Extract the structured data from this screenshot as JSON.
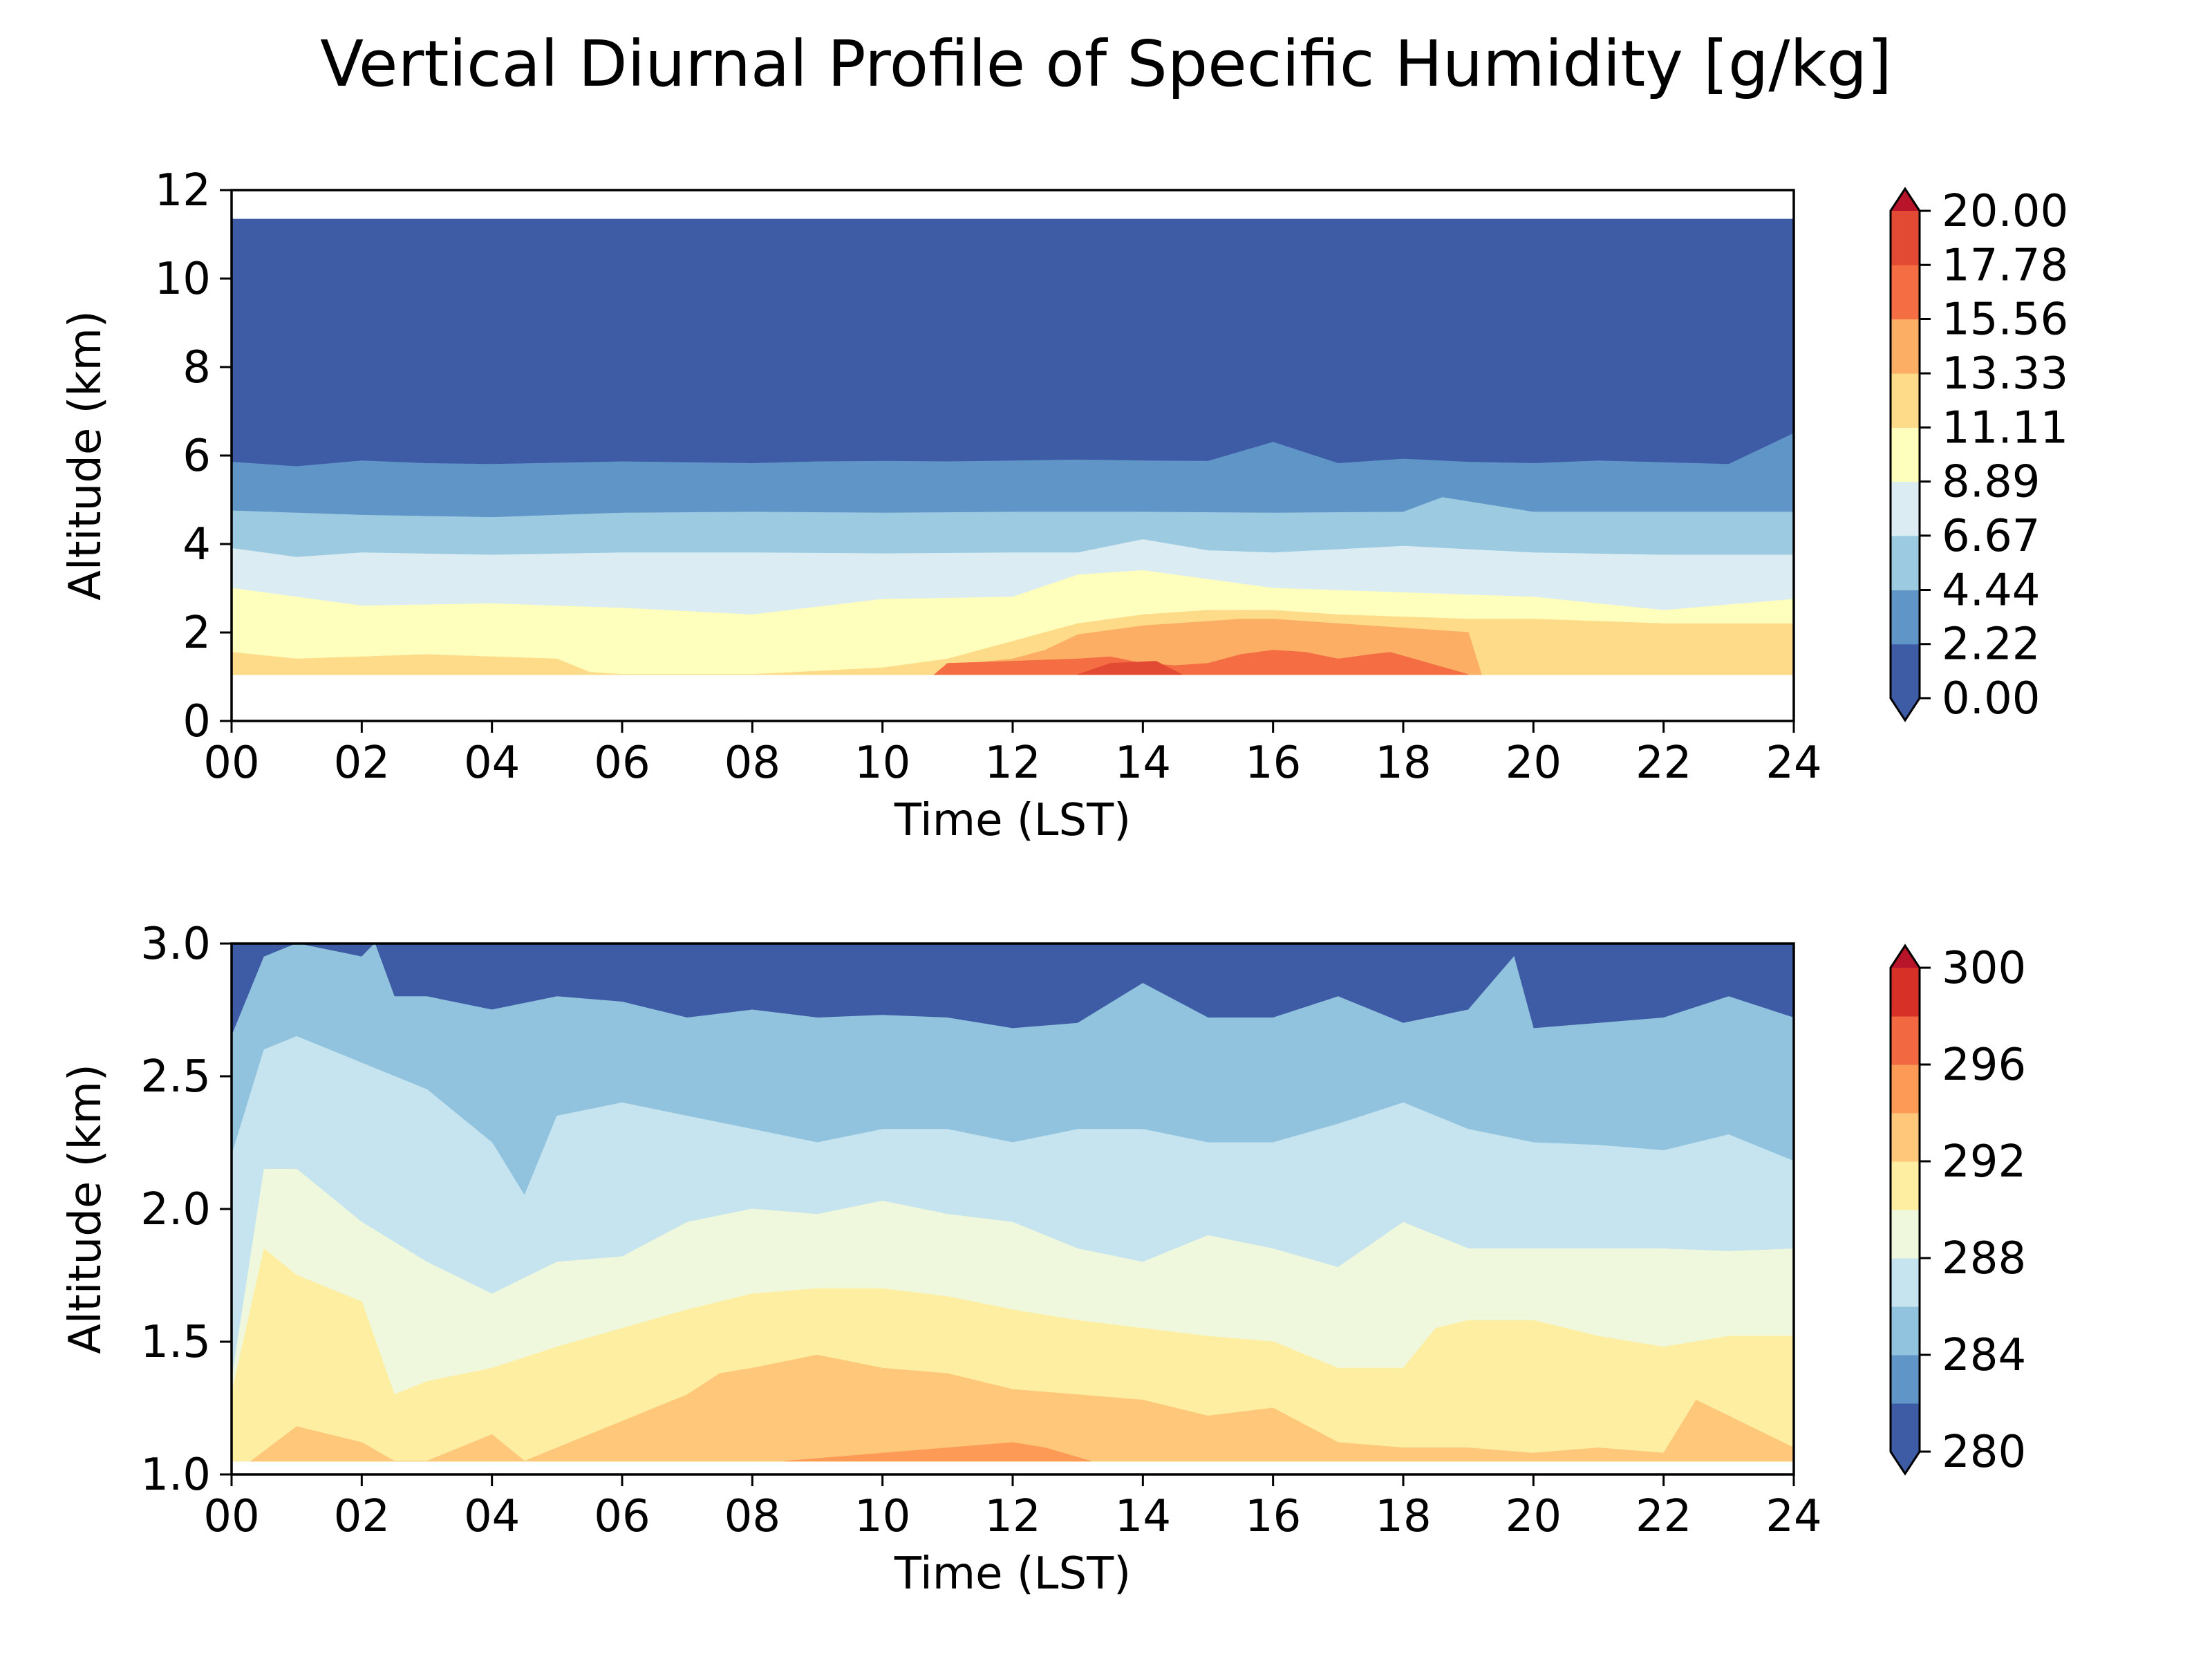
{
  "title": "Vertical Diurnal Profile of Specific Humidity [g/kg]",
  "chart_data": [
    {
      "type": "heatmap",
      "subtype": "filled-contour",
      "title": "",
      "xlabel": "Time (LST)",
      "ylabel": "Altitude (km)",
      "xlim": [
        0,
        24
      ],
      "ylim": [
        0,
        12
      ],
      "x_ticks": [
        "00",
        "02",
        "04",
        "06",
        "08",
        "10",
        "12",
        "14",
        "16",
        "18",
        "20",
        "22",
        "24"
      ],
      "y_ticks": [
        "0",
        "2",
        "4",
        "6",
        "8",
        "10",
        "12"
      ],
      "data_y_range": [
        1.05,
        11.35
      ],
      "colorbar": {
        "levels": [
          0.0,
          2.22,
          4.44,
          6.67,
          8.89,
          11.11,
          13.33,
          15.56,
          17.78,
          20.0
        ],
        "tick_labels": [
          "0.00",
          "2.22",
          "4.44",
          "6.67",
          "8.89",
          "11.11",
          "13.33",
          "15.56",
          "17.78",
          "20.00"
        ],
        "colors": [
          "#3e5ba5",
          "#6095c8",
          "#9ccbe1",
          "#dcecf3",
          "#fefebd",
          "#fedb88",
          "#fcaf64",
          "#f46d43",
          "#e34a33",
          "#b8142a"
        ],
        "extend": "both"
      },
      "contours": [
        {
          "upper_level": 2.22,
          "color": "#6095c8",
          "x": [
            0,
            1,
            2,
            3,
            4,
            5,
            6,
            7,
            8,
            9,
            10,
            11,
            12,
            13,
            14,
            15,
            16,
            17,
            18,
            19,
            20,
            21,
            22,
            23,
            24
          ],
          "y": [
            5.85,
            5.75,
            5.88,
            5.82,
            5.8,
            5.83,
            5.86,
            5.84,
            5.82,
            5.86,
            5.87,
            5.86,
            5.88,
            5.9,
            5.88,
            5.87,
            6.3,
            5.82,
            5.92,
            5.85,
            5.82,
            5.88,
            5.84,
            5.8,
            6.5
          ]
        },
        {
          "upper_level": 4.44,
          "color": "#9ccbe1",
          "x": [
            0,
            2,
            4,
            6,
            8,
            10,
            12,
            14,
            16,
            18,
            18.6,
            20,
            22,
            24
          ],
          "y": [
            4.75,
            4.65,
            4.6,
            4.7,
            4.72,
            4.7,
            4.72,
            4.72,
            4.7,
            4.72,
            5.05,
            4.72,
            4.72,
            4.72
          ]
        },
        {
          "upper_level": 6.67,
          "color": "#dcecf3",
          "x": [
            0,
            1,
            2,
            4,
            6,
            8,
            10,
            12,
            13,
            14,
            15,
            16,
            18,
            20,
            22,
            24
          ],
          "y": [
            3.9,
            3.7,
            3.8,
            3.75,
            3.8,
            3.8,
            3.78,
            3.8,
            3.8,
            4.1,
            3.85,
            3.8,
            3.95,
            3.8,
            3.75,
            3.75
          ]
        },
        {
          "upper_level": 8.89,
          "color": "#fefebd",
          "x": [
            0,
            2,
            4,
            6,
            8,
            10,
            12,
            13,
            14,
            15,
            16,
            18,
            20,
            22,
            24
          ],
          "y": [
            3.0,
            2.6,
            2.65,
            2.55,
            2.4,
            2.75,
            2.8,
            3.3,
            3.4,
            3.2,
            3.0,
            2.9,
            2.8,
            2.5,
            2.75
          ]
        },
        {
          "upper_level": 11.11,
          "color": "#fedb88",
          "x": [
            0,
            1,
            2,
            3,
            4,
            5,
            5.5,
            6,
            7,
            8,
            10,
            11,
            12,
            13,
            14,
            15,
            16,
            17,
            18,
            19,
            20,
            22,
            24
          ],
          "y": [
            1.55,
            1.4,
            1.45,
            1.5,
            1.45,
            1.4,
            1.1,
            1.05,
            1.05,
            1.05,
            1.2,
            1.4,
            1.8,
            2.2,
            2.4,
            2.5,
            2.5,
            2.4,
            2.35,
            2.3,
            2.3,
            2.2,
            2.2
          ]
        },
        {
          "upper_level": 13.33,
          "color": "#fcaf64",
          "x": [
            10.8,
            11,
            12,
            12.5,
            13,
            14,
            15,
            15.5,
            16,
            16.5,
            17,
            18,
            19,
            19.2
          ],
          "y": [
            1.05,
            1.25,
            1.4,
            1.6,
            1.95,
            2.15,
            2.25,
            2.3,
            2.3,
            2.25,
            2.2,
            2.1,
            2.0,
            1.05
          ]
        },
        {
          "upper_level": 15.56,
          "color": "#f46d43",
          "x": [
            10.8,
            11,
            12,
            13,
            13.5,
            14,
            14.5,
            15,
            15.5,
            16,
            16.5,
            17,
            17.5,
            17.8,
            19
          ],
          "y": [
            1.05,
            1.3,
            1.35,
            1.4,
            1.45,
            1.3,
            1.25,
            1.3,
            1.5,
            1.6,
            1.55,
            1.4,
            1.5,
            1.55,
            1.05
          ]
        },
        {
          "upper_level": 17.78,
          "color": "#e34a33",
          "x": [
            13.0,
            13.5,
            14.2,
            14.6
          ],
          "y": [
            1.05,
            1.3,
            1.35,
            1.05
          ]
        }
      ]
    },
    {
      "type": "heatmap",
      "subtype": "filled-contour",
      "title": "",
      "xlabel": "Time (LST)",
      "ylabel": "Altitude (km)",
      "xlim": [
        0,
        24
      ],
      "ylim": [
        1.0,
        3.0
      ],
      "x_ticks": [
        "00",
        "02",
        "04",
        "06",
        "08",
        "10",
        "12",
        "14",
        "16",
        "18",
        "20",
        "22",
        "24"
      ],
      "y_ticks": [
        "1.0",
        "1.5",
        "2.0",
        "2.5",
        "3.0"
      ],
      "data_y_range": [
        1.05,
        3.0
      ],
      "colorbar": {
        "levels": [
          280,
          282,
          284,
          286,
          288,
          290,
          292,
          294,
          296,
          298,
          300
        ],
        "tick_labels": [
          "280",
          "284",
          "288",
          "292",
          "296",
          "300"
        ],
        "colors": [
          "#3e5ba5",
          "#6095c8",
          "#91c3de",
          "#c5e4ef",
          "#eff8dc",
          "#feeea1",
          "#fec77a",
          "#fd9b56",
          "#f26841",
          "#d73027",
          "#b8142a"
        ],
        "extend": "both"
      },
      "contours": [
        {
          "upper_level": 286,
          "color": "#91c3de",
          "x": [
            0,
            0.5,
            1,
            2,
            2.2,
            2.5,
            3,
            4,
            5,
            6,
            7,
            8,
            9,
            10,
            11,
            12,
            13,
            14,
            15,
            16,
            17,
            18,
            19,
            19.7,
            20,
            21,
            22,
            23,
            24
          ],
          "y": [
            2.65,
            2.95,
            3.0,
            2.95,
            3.0,
            2.8,
            2.8,
            2.75,
            2.8,
            2.78,
            2.72,
            2.75,
            2.72,
            2.73,
            2.72,
            2.68,
            2.7,
            2.85,
            2.72,
            2.72,
            2.8,
            2.7,
            2.75,
            2.95,
            2.68,
            2.7,
            2.72,
            2.8,
            2.72
          ]
        },
        {
          "upper_level": 288,
          "color": "#c5e4ef",
          "x": [
            0,
            0.5,
            1,
            2,
            3,
            4,
            4.5,
            5,
            6,
            7,
            8,
            9,
            10,
            11,
            12,
            13,
            14,
            15,
            16,
            17,
            18,
            19,
            20,
            21,
            22,
            23,
            24
          ],
          "y": [
            2.2,
            2.6,
            2.65,
            2.55,
            2.45,
            2.25,
            2.05,
            2.35,
            2.4,
            2.35,
            2.3,
            2.25,
            2.3,
            2.3,
            2.25,
            2.3,
            2.3,
            2.25,
            2.25,
            2.32,
            2.4,
            2.3,
            2.25,
            2.24,
            2.22,
            2.28,
            2.18
          ]
        },
        {
          "upper_level": 290,
          "color": "#eff8dc",
          "x": [
            0,
            0.5,
            1,
            2,
            3,
            4,
            5,
            6,
            7,
            8,
            9,
            10,
            11,
            12,
            13,
            14,
            15,
            16,
            17,
            18,
            19,
            20,
            21,
            22,
            23,
            24
          ],
          "y": [
            1.35,
            2.15,
            2.15,
            1.95,
            1.8,
            1.68,
            1.8,
            1.82,
            1.95,
            2.0,
            1.98,
            2.03,
            1.98,
            1.95,
            1.85,
            1.8,
            1.9,
            1.85,
            1.78,
            1.95,
            1.85,
            1.85,
            1.85,
            1.85,
            1.84,
            1.85
          ]
        },
        {
          "upper_level": 292,
          "color": "#feeea1",
          "x": [
            0,
            0.5,
            1,
            1.5,
            2,
            2.5,
            3,
            4,
            5,
            6,
            7,
            8,
            9,
            10,
            11,
            12,
            13,
            14,
            15,
            16,
            17,
            18,
            18.5,
            19,
            20,
            21,
            22,
            23,
            24
          ],
          "y": [
            1.3,
            1.85,
            1.75,
            1.7,
            1.65,
            1.3,
            1.35,
            1.4,
            1.48,
            1.55,
            1.62,
            1.68,
            1.7,
            1.7,
            1.67,
            1.62,
            1.58,
            1.55,
            1.52,
            1.5,
            1.4,
            1.4,
            1.55,
            1.58,
            1.58,
            1.52,
            1.48,
            1.52,
            1.52
          ]
        },
        {
          "upper_level": 294,
          "color": "#fec77a",
          "x": [
            0.3,
            1,
            2,
            2.5,
            3,
            4,
            4.5,
            5,
            6,
            7,
            7.5,
            8,
            9,
            10,
            11,
            12,
            13,
            14,
            15,
            16,
            17,
            18,
            19,
            20,
            21,
            22,
            22.5,
            23,
            24
          ],
          "y": [
            1.05,
            1.18,
            1.12,
            1.05,
            1.05,
            1.15,
            1.05,
            1.1,
            1.2,
            1.3,
            1.38,
            1.4,
            1.45,
            1.4,
            1.38,
            1.32,
            1.3,
            1.28,
            1.22,
            1.25,
            1.12,
            1.1,
            1.1,
            1.08,
            1.1,
            1.08,
            1.28,
            1.22,
            1.1
          ]
        },
        {
          "upper_level": 296,
          "color": "#fd9b56",
          "x": [
            8.5,
            9,
            10,
            11,
            12,
            12.5,
            13.2
          ],
          "y": [
            1.05,
            1.06,
            1.08,
            1.1,
            1.12,
            1.1,
            1.05
          ]
        }
      ]
    }
  ]
}
